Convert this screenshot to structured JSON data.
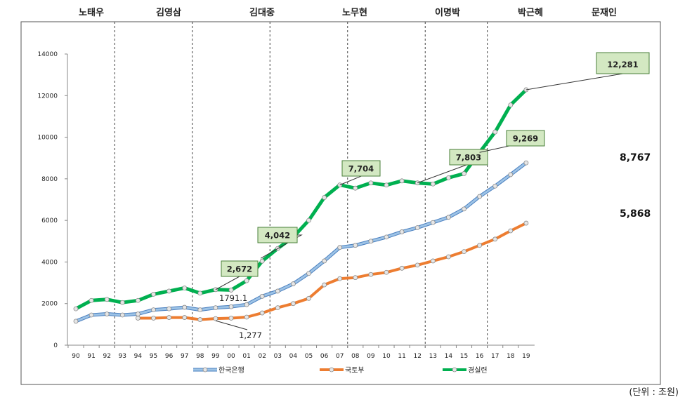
{
  "chart_data": {
    "type": "line",
    "unit_note": "(단위 : 조원)",
    "eras": [
      "노태우",
      "김영삼",
      "김대중",
      "노무현",
      "이명박",
      "박근혜",
      "문재인"
    ],
    "era_boundary_years": [
      "92.5",
      "97.5",
      "02.5",
      "07.5",
      "12.5",
      "16.5"
    ],
    "categories": [
      "90",
      "91",
      "92",
      "93",
      "94",
      "95",
      "96",
      "97",
      "98",
      "99",
      "00",
      "01",
      "02",
      "03",
      "04",
      "05",
      "06",
      "07",
      "08",
      "09",
      "10",
      "11",
      "12",
      "13",
      "14",
      "15",
      "16",
      "17",
      "18",
      "19"
    ],
    "ylim": [
      0,
      14000
    ],
    "yticks": [
      "0",
      "2000",
      "4000",
      "6000",
      "8000",
      "10000",
      "12000",
      "14000"
    ],
    "series": [
      {
        "name": "한국은행",
        "color": "#9dc3e6",
        "stroke": "#4a7fbf",
        "values": [
          1150,
          1450,
          1500,
          1450,
          1500,
          1700,
          1750,
          1820,
          1700,
          1800,
          1850,
          1950,
          2350,
          2600,
          2950,
          3450,
          4050,
          4700,
          4800,
          5000,
          5200,
          5450,
          5650,
          5900,
          6150,
          6550,
          7150,
          7650,
          8200,
          8767
        ]
      },
      {
        "name": "국토부",
        "color": "#ed7d31",
        "stroke": "#ed7d31",
        "values": [
          null,
          null,
          null,
          null,
          1300,
          1300,
          1330,
          1330,
          1230,
          1277,
          1300,
          1350,
          1550,
          1800,
          2000,
          2250,
          2900,
          3200,
          3250,
          3400,
          3500,
          3700,
          3850,
          4050,
          4250,
          4500,
          4800,
          5100,
          5500,
          5868
        ]
      },
      {
        "name": "경실련",
        "color": "#00b050",
        "stroke": "#00b050",
        "values": [
          1750,
          2150,
          2200,
          2050,
          2150,
          2450,
          2600,
          2750,
          2500,
          2672,
          2650,
          3100,
          4042,
          4650,
          5200,
          6000,
          7100,
          7704,
          7550,
          7800,
          7700,
          7900,
          7803,
          7750,
          8050,
          8250,
          9269,
          10250,
          11550,
          12281
        ]
      }
    ],
    "callouts": [
      {
        "text": "2,672"
      },
      {
        "text": "4,042"
      },
      {
        "text": "7,704"
      },
      {
        "text": "7,803"
      },
      {
        "text": "9,269"
      },
      {
        "text": "12,281"
      }
    ],
    "labels": [
      {
        "text": "1791.1"
      },
      {
        "text": "1,277"
      }
    ],
    "end_labels": [
      "8,767",
      "5,868"
    ]
  }
}
